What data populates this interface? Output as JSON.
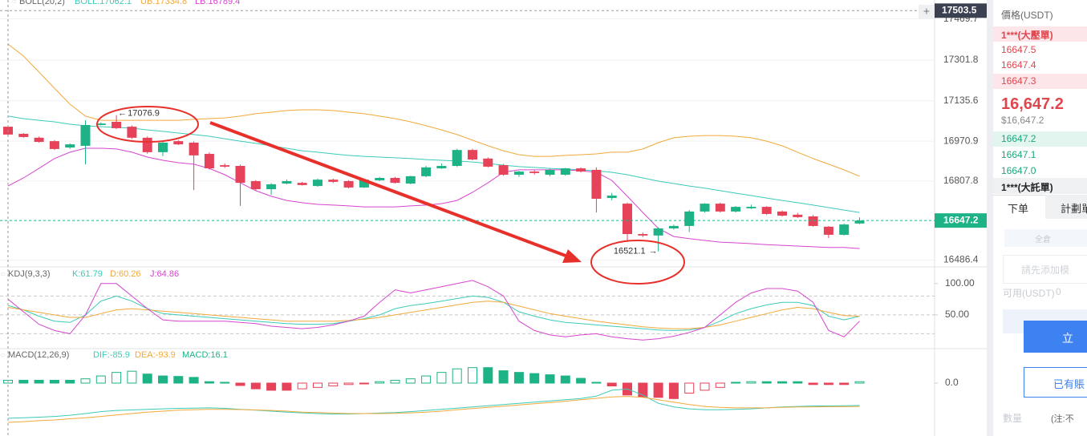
{
  "chart_data": [
    {
      "type": "candlestick",
      "title": "BOLL(20,2)",
      "up_color": "#1db386",
      "down_color": "#e6435a",
      "open": [
        17030,
        17001,
        16985,
        16971,
        16945,
        16952,
        17037,
        17050,
        17030,
        16985,
        16926,
        16971,
        16965,
        16919,
        16873,
        16870,
        16808,
        16775,
        16798,
        16801,
        16788,
        16814,
        16808,
        16782,
        16811,
        16821,
        16798,
        16828,
        16860,
        16870,
        16935,
        16900,
        16873,
        16834,
        16847,
        16834,
        16834,
        16860,
        16854,
        16739,
        16716,
        16592,
        16586,
        16615,
        16625,
        16684,
        16716,
        16684,
        16697,
        16703,
        16684,
        16671,
        16664,
        16622,
        16589,
        16635
      ],
      "high": [
        17035,
        17004,
        16990,
        16975,
        16962,
        17056,
        17048,
        17076.9,
        17035,
        16990,
        16970,
        16975,
        16970,
        16925,
        16880,
        16875,
        16812,
        16800,
        16815,
        16805,
        16818,
        16818,
        16812,
        16818,
        16825,
        16825,
        16830,
        16870,
        16880,
        16940,
        16940,
        16905,
        16878,
        16850,
        16852,
        16858,
        16862,
        16864,
        16864,
        16760,
        16720,
        16598,
        16620,
        16630,
        16690,
        16718,
        16720,
        16706,
        16712,
        16706,
        16688,
        16678,
        16670,
        16625,
        16635,
        16660
      ],
      "low": [
        16995,
        16985,
        16965,
        16935,
        16940,
        16877,
        17035,
        17020,
        16980,
        16920,
        16910,
        16955,
        16772,
        16855,
        16862,
        16707,
        16770,
        16752,
        16795,
        16790,
        16785,
        16800,
        16778,
        16780,
        16808,
        16798,
        16795,
        16824,
        16858,
        16865,
        16893,
        16864,
        16830,
        16825,
        16835,
        16828,
        16830,
        16843,
        16680,
        16730,
        16566,
        16580,
        16521.1,
        16610,
        16600,
        16680,
        16680,
        16680,
        16694,
        16670,
        16664,
        16658,
        16622,
        16576,
        16586,
        16632
      ],
      "close": [
        16998,
        16988,
        16968,
        16939,
        16958,
        17037,
        17043,
        17024,
        16985,
        16926,
        16965,
        16958,
        16913,
        16860,
        16867,
        16801,
        16775,
        16795,
        16808,
        16792,
        16814,
        16805,
        16782,
        16814,
        16821,
        16801,
        16828,
        16864,
        16870,
        16935,
        16896,
        16867,
        16834,
        16847,
        16841,
        16854,
        16860,
        16847,
        16736,
        16749,
        16592,
        16586,
        16615,
        16625,
        16684,
        16716,
        16684,
        16703,
        16703,
        16674,
        16667,
        16661,
        16625,
        16589,
        16631,
        16647.2
      ],
      "series": [
        {
          "name": "BOLL:17062.1",
          "color": "#3ccab8",
          "values": [
            17073,
            17063,
            17056,
            17050,
            17040,
            17034,
            17030,
            17027,
            17024,
            17017,
            17011,
            17004,
            16998,
            16991,
            16981,
            16971,
            16962,
            16952,
            16942,
            16932,
            16926,
            16919,
            16913,
            16909,
            16906,
            16903,
            16900,
            16896,
            16893,
            16890,
            16886,
            16880,
            16873,
            16867,
            16864,
            16860,
            16857,
            16854,
            16850,
            16844,
            16834,
            16821,
            16808,
            16798,
            16788,
            16779,
            16769,
            16759,
            16749,
            16739,
            16729,
            16720,
            16710,
            16700,
            16690,
            16680
          ]
        },
        {
          "name": "UB:17334.8",
          "color": "#f2a93b",
          "values": [
            17367,
            17318,
            17253,
            17187,
            17122,
            17073,
            17056,
            17056,
            17056,
            17056,
            17056,
            17056,
            17060,
            17063,
            17066,
            17073,
            17083,
            17089,
            17096,
            17099,
            17099,
            17096,
            17089,
            17083,
            17073,
            17063,
            17050,
            17034,
            17017,
            16998,
            16975,
            16952,
            16932,
            16916,
            16909,
            16909,
            16913,
            16916,
            16919,
            16926,
            16926,
            16939,
            16965,
            16985,
            16991,
            16994,
            16994,
            16991,
            16985,
            16971,
            16952,
            16926,
            16900,
            16877,
            16854,
            16828
          ]
        },
        {
          "name": "LB:16789.4",
          "color": "#d545cf",
          "values": [
            16788,
            16821,
            16860,
            16900,
            16926,
            16942,
            16942,
            16939,
            16926,
            16906,
            16893,
            16883,
            16877,
            16860,
            16834,
            16801,
            16769,
            16746,
            16729,
            16720,
            16713,
            16710,
            16707,
            16703,
            16703,
            16703,
            16707,
            16710,
            16716,
            16729,
            16762,
            16801,
            16844,
            16854,
            16854,
            16854,
            16854,
            16850,
            16844,
            16811,
            16746,
            16680,
            16615,
            16582,
            16573,
            16566,
            16559,
            16556,
            16553,
            16549,
            16546,
            16543,
            16540,
            16537,
            16537,
            16533
          ]
        }
      ],
      "ylim": [
        16458,
        17547
      ],
      "yticks": [
        17469.7,
        17301.8,
        17135.6,
        16970.9,
        16807.8,
        16486.4
      ],
      "grid": true,
      "crosshair_value": 17503.5
    },
    {
      "type": "line",
      "title": "KDJ(9,3,3)",
      "series": [
        {
          "name": "K:61.79",
          "color": "#3ccab8",
          "values": [
            65,
            58,
            48,
            40,
            38,
            50,
            72,
            80,
            72,
            60,
            52,
            50,
            48,
            46,
            44,
            42,
            40,
            38,
            36,
            35,
            35,
            36,
            40,
            44,
            50,
            60,
            65,
            68,
            72,
            76,
            80,
            78,
            70,
            55,
            48,
            42,
            38,
            36,
            34,
            32,
            30,
            28,
            26,
            25,
            26,
            30,
            40,
            52,
            60,
            66,
            70,
            70,
            65,
            48,
            42,
            48
          ]
        },
        {
          "name": "D:60.26",
          "color": "#f2a93b",
          "values": [
            62,
            58,
            54,
            50,
            46,
            46,
            52,
            58,
            60,
            58,
            56,
            54,
            52,
            50,
            48,
            46,
            44,
            42,
            40,
            40,
            40,
            40,
            41,
            43,
            46,
            50,
            54,
            58,
            62,
            66,
            70,
            72,
            70,
            64,
            58,
            52,
            48,
            44,
            40,
            37,
            34,
            31,
            29,
            28,
            28,
            30,
            34,
            40,
            46,
            52,
            58,
            62,
            60,
            54,
            49,
            48
          ]
        },
        {
          "name": "J:64.86",
          "color": "#d545cf",
          "values": [
            75,
            55,
            35,
            25,
            20,
            50,
            100,
            100,
            80,
            60,
            42,
            40,
            40,
            40,
            40,
            38,
            36,
            32,
            30,
            28,
            30,
            34,
            40,
            48,
            70,
            90,
            85,
            90,
            95,
            100,
            105,
            95,
            80,
            40,
            25,
            18,
            15,
            18,
            20,
            15,
            12,
            10,
            12,
            16,
            22,
            30,
            50,
            70,
            85,
            92,
            92,
            88,
            70,
            25,
            15,
            40
          ]
        }
      ],
      "ylim": [
        0,
        124
      ],
      "yticks": [
        {
          "value": 100,
          "label": "100.00"
        },
        {
          "value": 50,
          "label": "50.00"
        }
      ],
      "dashed_lines": [
        80,
        50,
        20
      ]
    },
    {
      "type": "macd",
      "title": "MACD(12,26,9)",
      "histogram_name": "MACD:16.1",
      "up_color": "#1db386",
      "down_color": "#e6435a",
      "histogram": [
        12,
        12,
        12,
        12,
        12,
        18,
        30,
        45,
        50,
        38,
        30,
        28,
        24,
        6,
        3,
        -10,
        -24,
        -30,
        -30,
        -24,
        -18,
        -12,
        -6,
        -3,
        6,
        12,
        18,
        30,
        45,
        60,
        65,
        65,
        52,
        45,
        40,
        35,
        30,
        20,
        3,
        -12,
        -50,
        -58,
        -60,
        -65,
        -42,
        -30,
        -18,
        3,
        6,
        6,
        6,
        6,
        -6,
        -6,
        -6,
        6
      ],
      "series": [
        {
          "name": "DIF:-85.9",
          "color": "#3ccab8",
          "values": [
            -148,
            -146,
            -143,
            -140,
            -135,
            -128,
            -120,
            -115,
            -113,
            -110,
            -108,
            -106,
            -105,
            -104,
            -106,
            -110,
            -114,
            -118,
            -122,
            -125,
            -128,
            -130,
            -130,
            -128,
            -126,
            -124,
            -120,
            -115,
            -110,
            -105,
            -100,
            -95,
            -90,
            -85,
            -80,
            -75,
            -70,
            -65,
            -55,
            -30,
            -25,
            -50,
            -85,
            -100,
            -108,
            -112,
            -112,
            -110,
            -108,
            -104,
            -100,
            -98,
            -96,
            -96,
            -95,
            -94
          ]
        },
        {
          "name": "DEA:-93.9",
          "color": "#f2a93b",
          "values": [
            -165,
            -162,
            -158,
            -155,
            -150,
            -146,
            -140,
            -134,
            -128,
            -122,
            -118,
            -114,
            -112,
            -110,
            -110,
            -111,
            -113,
            -115,
            -118,
            -122,
            -124,
            -126,
            -128,
            -128,
            -128,
            -127,
            -125,
            -122,
            -118,
            -112,
            -107,
            -102,
            -97,
            -92,
            -87,
            -82,
            -76,
            -70,
            -64,
            -58,
            -56,
            -60,
            -70,
            -80,
            -90,
            -98,
            -102,
            -104,
            -104,
            -104,
            -102,
            -100,
            -100,
            -99,
            -99,
            -98
          ]
        }
      ],
      "ylim": [
        -192,
        128
      ],
      "yticks": [
        {
          "value": 0,
          "label": "0.0"
        }
      ]
    }
  ],
  "order_book": {
    "header": "價格(USDT)",
    "ask_big": "1***(大壓單)",
    "asks": [
      "16647.5",
      "16647.4",
      "16647.3"
    ],
    "last_price": "16,647.2",
    "last_price_usd": "$16,647.2",
    "bids": [
      "16647.2",
      "16647.1",
      "16647.0"
    ],
    "bid_big": "1***(大託單)",
    "tabs": [
      "下单",
      "計劃單"
    ],
    "margin_mode": "全倉",
    "notice": "請先添加模",
    "available": "可用(USDT)",
    "available_value": "0",
    "buy_button": "立",
    "account_button": "已有賬",
    "quantity": "數量",
    "note": "(注:不"
  }
}
